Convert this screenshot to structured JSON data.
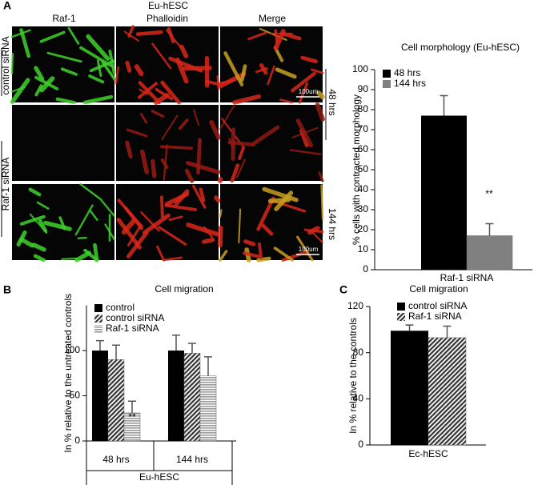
{
  "figure": {
    "panels": [
      "A",
      "B",
      "C"
    ],
    "panel_a": {
      "title": "Eu-hESC",
      "columns": [
        "Raf-1",
        "Phalloidin",
        "Merge"
      ],
      "rows": [
        "control siRNA",
        "Raf-1 siRNA"
      ],
      "times": [
        "48 hrs",
        "144 hrs"
      ],
      "scale_bar": "100um"
    }
  },
  "chart_data": [
    {
      "type": "bar",
      "title": "Cell morphology (Eu-hESC)",
      "y_label": "% cells with contracted morphology",
      "categories": [
        "Raf-1 siRNA"
      ],
      "series": [
        {
          "name": "48 hrs",
          "color": "#000000",
          "values": [
            77
          ],
          "errors": [
            10
          ]
        },
        {
          "name": "144 hrs",
          "color": "#808080",
          "values": [
            17
          ],
          "errors": [
            6
          ]
        }
      ],
      "ylim": [
        0,
        100
      ],
      "yticks": [
        0,
        10,
        20,
        30,
        40,
        50,
        60,
        70,
        80,
        90,
        100
      ],
      "legend": "upper left",
      "annotations": [
        "**"
      ]
    },
    {
      "type": "bar",
      "title": "Cell migration",
      "y_label": "In % relative to the untreated controls",
      "x_label": "Eu-hESC",
      "categories": [
        "48 hrs",
        "144 hrs"
      ],
      "series": [
        {
          "name": "control",
          "color": "#000000",
          "values": [
            100,
            100
          ],
          "errors": [
            11,
            17
          ]
        },
        {
          "name": "control siRNA",
          "color": "#555555",
          "values": [
            90,
            97
          ],
          "errors": [
            16,
            11
          ]
        },
        {
          "name": "Raf-1 siRNA",
          "color": "#b0b0b0",
          "values": [
            31,
            72
          ],
          "errors": [
            13,
            21
          ]
        }
      ],
      "ylim": [
        0,
        150
      ],
      "yticks": [
        0,
        50,
        100
      ],
      "legend": "upper left",
      "annotations": [
        "**"
      ]
    },
    {
      "type": "bar",
      "title": "Cell migration",
      "y_label": "In % relative to the controls",
      "categories": [
        "Ec-hESC"
      ],
      "series": [
        {
          "name": "control siRNA",
          "color": "#000000",
          "values": [
            99
          ],
          "errors": [
            5
          ]
        },
        {
          "name": "Raf-1 siRNA",
          "color": "#555555",
          "values": [
            93
          ],
          "errors": [
            10
          ]
        }
      ],
      "ylim": [
        0,
        120
      ],
      "yticks": [
        0,
        40,
        80,
        120
      ],
      "legend": "upper left"
    }
  ]
}
